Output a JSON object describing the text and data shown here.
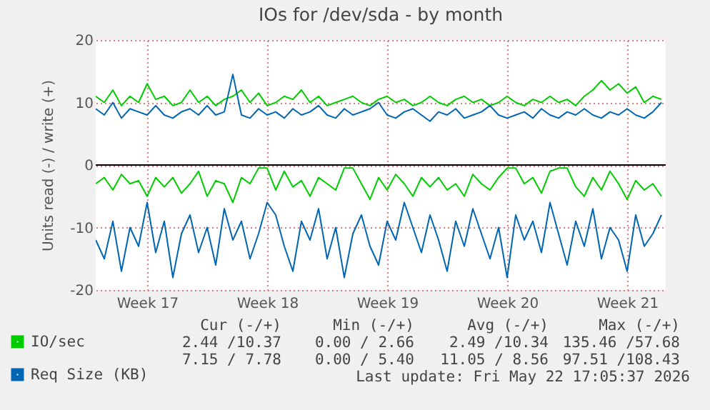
{
  "chart_data": {
    "type": "line",
    "title": "IOs for /dev/sda - by month",
    "ylabel": "Units read (-) / write (+)",
    "x": [
      "2026-04-20T12:00",
      "2026-04-21T00:00",
      "2026-04-21T12:00",
      "2026-04-22T00:00",
      "2026-04-22T12:00",
      "2026-04-23T00:00",
      "2026-04-23T12:00",
      "2026-04-24T00:00",
      "2026-04-24T12:00",
      "2026-04-25T00:00",
      "2026-04-25T12:00",
      "2026-04-26T00:00",
      "2026-04-26T12:00",
      "2026-04-27T00:00",
      "2026-04-27T12:00",
      "2026-04-28T00:00",
      "2026-04-28T12:00",
      "2026-04-29T00:00",
      "2026-04-29T12:00",
      "2026-04-30T00:00",
      "2026-04-30T12:00",
      "2026-05-01T00:00",
      "2026-05-01T12:00",
      "2026-05-02T00:00",
      "2026-05-02T12:00",
      "2026-05-03T00:00",
      "2026-05-03T12:00",
      "2026-05-04T00:00",
      "2026-05-04T12:00",
      "2026-05-05T00:00",
      "2026-05-05T12:00",
      "2026-05-06T00:00",
      "2026-05-06T12:00",
      "2026-05-07T00:00",
      "2026-05-07T12:00",
      "2026-05-08T00:00",
      "2026-05-08T12:00",
      "2026-05-09T00:00",
      "2026-05-09T12:00",
      "2026-05-10T00:00",
      "2026-05-10T12:00",
      "2026-05-11T00:00",
      "2026-05-11T12:00",
      "2026-05-12T00:00",
      "2026-05-12T12:00",
      "2026-05-13T00:00",
      "2026-05-13T12:00",
      "2026-05-14T00:00",
      "2026-05-14T12:00",
      "2026-05-15T00:00",
      "2026-05-15T12:00",
      "2026-05-16T00:00",
      "2026-05-16T12:00",
      "2026-05-17T00:00",
      "2026-05-17T12:00",
      "2026-05-18T00:00",
      "2026-05-18T12:00",
      "2026-05-19T00:00",
      "2026-05-19T12:00",
      "2026-05-20T00:00",
      "2026-05-20T12:00",
      "2026-05-21T00:00",
      "2026-05-21T12:00",
      "2026-05-22T00:00",
      "2026-05-22T12:00",
      "2026-05-23T00:00",
      "2026-05-23T12:00"
    ],
    "series": [
      {
        "name": "IO/sec",
        "color": "#00cc00",
        "values": [
          11,
          10,
          12,
          9.5,
          11,
          10,
          13,
          10.5,
          11,
          9.5,
          10,
          12,
          10,
          11,
          9.5,
          10.5,
          11,
          12,
          10,
          11.5,
          9.5,
          10,
          11,
          10.5,
          12,
          10,
          11,
          9.5,
          10,
          10.5,
          11,
          10,
          9.5,
          10.5,
          11,
          10,
          10.5,
          9.5,
          10,
          11,
          10,
          9.5,
          10.5,
          11,
          10,
          10.5,
          9.5,
          10,
          11,
          10,
          9.5,
          10.5,
          10,
          11,
          10,
          10.5,
          9.5,
          11,
          12,
          13.5,
          12,
          13,
          11.5,
          12.5,
          10,
          11,
          10.5
        ]
      },
      {
        "color": "#00cc00",
        "values": [
          -3,
          -2,
          -4,
          -1.5,
          -3,
          -2.5,
          -5,
          -2,
          -3.5,
          -2,
          -4.5,
          -3,
          -1,
          -5,
          -2.5,
          -3,
          -6,
          -2,
          -3,
          -0.5,
          -0.5,
          -4,
          -1,
          -3.5,
          -2.5,
          -5,
          -2,
          -3,
          -4,
          -0.5,
          -0.5,
          -3,
          -5.5,
          -2,
          -4,
          -1.5,
          -3,
          -5,
          -2,
          -3.5,
          -2,
          -4,
          -3,
          -5,
          -1.5,
          -3,
          -4,
          -2,
          -0.5,
          -0.5,
          -3,
          -2,
          -4.5,
          -1,
          -0.5,
          -0.5,
          -3.5,
          -5,
          -2,
          -4,
          -1,
          -3,
          -5.5,
          -2.5,
          -4,
          -3,
          -5
        ]
      },
      {
        "name": "Req Size (KB)",
        "color": "#0066b3",
        "values": [
          9,
          8,
          10,
          7.5,
          9,
          8.5,
          8,
          9.5,
          8,
          7.5,
          8.5,
          9,
          8,
          9.5,
          8,
          8.5,
          14.5,
          8,
          7.5,
          9,
          8,
          8.5,
          7.5,
          9,
          8,
          8.5,
          9.5,
          8,
          7.5,
          9,
          8,
          8.5,
          9,
          10,
          8,
          7.5,
          8.5,
          9,
          8,
          7,
          8.5,
          8,
          9,
          7.5,
          8,
          8.5,
          9.5,
          8,
          7.5,
          8,
          8.5,
          7.5,
          9,
          8,
          7.5,
          8.5,
          8,
          9,
          8,
          7.5,
          8.5,
          8,
          9,
          8,
          7.5,
          8.5,
          10
        ]
      },
      {
        "color": "#0066b3",
        "values": [
          -12,
          -15,
          -9,
          -17,
          -10,
          -13,
          -6,
          -14,
          -9,
          -18,
          -11,
          -8,
          -14,
          -10,
          -16,
          -7,
          -12,
          -9,
          -15,
          -11,
          -6,
          -8,
          -13,
          -17,
          -9,
          -12,
          -7,
          -15,
          -10,
          -18,
          -11,
          -8,
          -13,
          -16,
          -9,
          -12,
          -6,
          -10,
          -14,
          -8,
          -12,
          -17,
          -9,
          -13,
          -7,
          -11,
          -15,
          -10,
          -18,
          -8,
          -12,
          -9,
          -14,
          -6,
          -11,
          -16,
          -9,
          -13,
          -7,
          -15,
          -10,
          -12,
          -17,
          -8,
          -13,
          -11,
          -8
        ]
      }
    ],
    "xlim": [
      "2026-04-20T12:00",
      "2026-05-23T18:00"
    ],
    "xticks": [
      {
        "value": "2026-04-23T12:00",
        "label": "Week 17"
      },
      {
        "value": "2026-04-30T12:00",
        "label": "Week 18"
      },
      {
        "value": "2026-05-07T12:00",
        "label": "Week 19"
      },
      {
        "value": "2026-05-14T12:00",
        "label": "Week 20"
      },
      {
        "value": "2026-05-21T12:00",
        "label": "Week 21"
      }
    ],
    "ylim": [
      -20,
      20
    ],
    "yticks": [
      -20,
      -10,
      0,
      10,
      20
    ],
    "grid": true,
    "legend": "bottom left",
    "ref_lines": [
      {
        "axis": "y",
        "value": 0,
        "color": "#000000"
      }
    ],
    "annotations": [
      "Cur (-/+)",
      "Min (-/+)",
      "Avg (-/+)",
      "Max (-/+)",
      "2.44 /10.37",
      "0.00 / 2.66",
      "2.49 /10.34",
      "135.46 /57.68",
      "7.15 / 7.78",
      "0.00 / 5.40",
      "11.05 / 8.56",
      "97.51 /108.43",
      "Last update: Fri May 22 17:05:37 2026"
    ]
  }
}
